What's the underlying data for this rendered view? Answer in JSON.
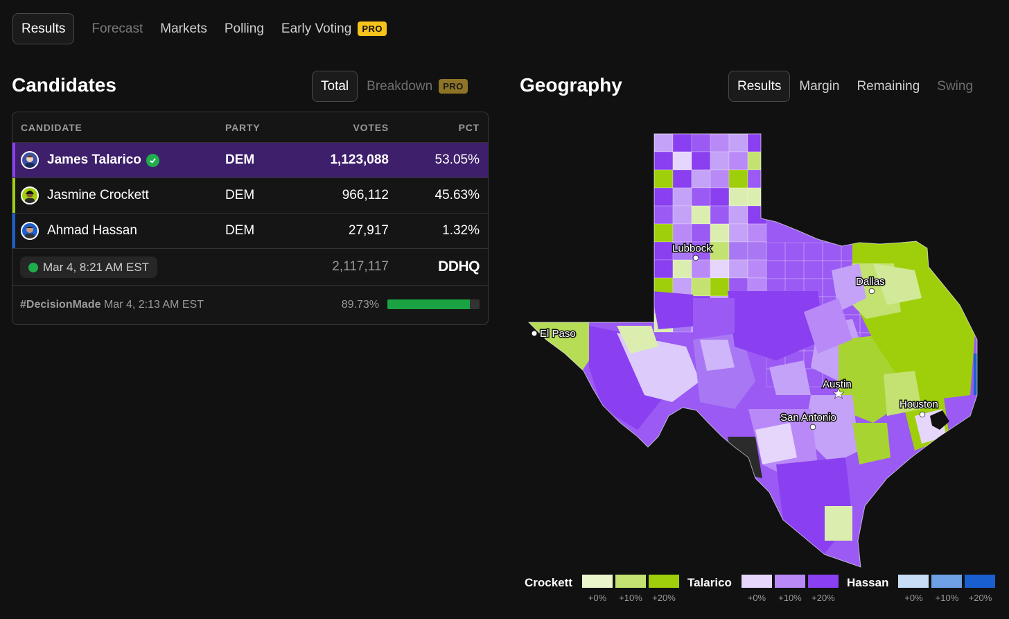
{
  "nav": {
    "tabs": [
      {
        "label": "Results"
      },
      {
        "label": "Forecast"
      },
      {
        "label": "Markets"
      },
      {
        "label": "Polling"
      },
      {
        "label": "Early Voting"
      }
    ],
    "pro_label": "PRO"
  },
  "candidates": {
    "title": "Candidates",
    "tabs": {
      "total": "Total",
      "breakdown": "Breakdown"
    },
    "pro_label": "PRO",
    "headers": {
      "candidate": "CANDIDATE",
      "party": "PARTY",
      "votes": "VOTES",
      "pct": "PCT"
    },
    "rows": [
      {
        "name": "James Talarico",
        "party": "DEM",
        "votes": "1,123,088",
        "pct": "53.05%",
        "color": "#8a3ff0"
      },
      {
        "name": "Jasmine Crockett",
        "party": "DEM",
        "votes": "966,112",
        "pct": "45.63%",
        "color": "#9fcf0a"
      },
      {
        "name": "Ahmad Hassan",
        "party": "DEM",
        "votes": "27,917",
        "pct": "1.32%",
        "color": "#1a5fd0"
      }
    ],
    "updated": "Mar 4, 8:21 AM EST",
    "total_votes": "2,117,117",
    "source_logo": "DDHQ",
    "decision_tag": "#DecisionMade",
    "decision_time": "Mar 4, 2:13 AM EST",
    "reporting_pct": "89.73%",
    "reporting_fraction": 0.8973
  },
  "geography": {
    "title": "Geography",
    "tabs": {
      "results": "Results",
      "margin": "Margin",
      "remaining": "Remaining",
      "swing": "Swing"
    },
    "cities": {
      "lubbock": "Lubbock",
      "dallas": "Dallas",
      "el_paso": "El Paso",
      "austin": "Austin",
      "houston": "Houston",
      "san_antonio": "San Antonio"
    },
    "legend": [
      {
        "name": "Crockett",
        "colors": [
          "#eaf5cc",
          "#c4e271",
          "#9fcf0a"
        ]
      },
      {
        "name": "Talarico",
        "colors": [
          "#e6d6fc",
          "#b98af7",
          "#8a3ff0"
        ]
      },
      {
        "name": "Hassan",
        "colors": [
          "#c7dcf5",
          "#6fa0e6",
          "#1a5fd0"
        ]
      }
    ],
    "legend_labels": [
      "+0%",
      "+10%",
      "+20%"
    ]
  }
}
